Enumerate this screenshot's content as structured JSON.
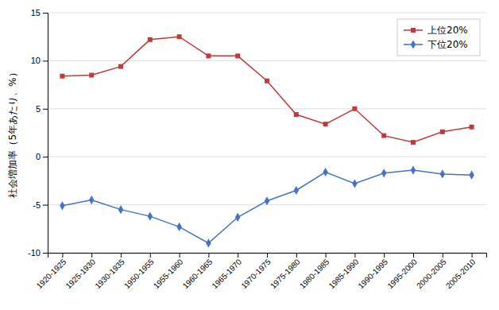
{
  "chart_data": {
    "type": "line",
    "categories": [
      "1920-1925",
      "1925-1930",
      "1930-1935",
      "1950-1955",
      "1955-1960",
      "1960-1965",
      "1965-1970",
      "1970-1975",
      "1975-1980",
      "1980-1985",
      "1985-1990",
      "1990-1995",
      "1995-2000",
      "2000-2005",
      "2005-2010"
    ],
    "series": [
      {
        "name": "上位20%",
        "color": "#c0393b",
        "marker": "square",
        "values": [
          8.4,
          8.5,
          9.4,
          12.2,
          12.5,
          10.5,
          10.5,
          7.9,
          4.4,
          3.4,
          5.0,
          2.2,
          1.5,
          2.6,
          3.1
        ]
      },
      {
        "name": "下位20%",
        "color": "#4472c4",
        "marker": "diamond",
        "values": [
          -5.1,
          -4.5,
          -5.5,
          -6.2,
          -7.3,
          -9.0,
          -6.3,
          -4.6,
          -3.5,
          -1.6,
          -2.8,
          -1.7,
          -1.4,
          -1.8,
          -1.9
        ]
      }
    ],
    "ylabel": "社会増加率（5年あたり、%）",
    "ylim": [
      -10,
      15
    ],
    "yticks": [
      -10,
      -5,
      0,
      5,
      10,
      15
    ],
    "grid": true,
    "legend": "upper right"
  }
}
